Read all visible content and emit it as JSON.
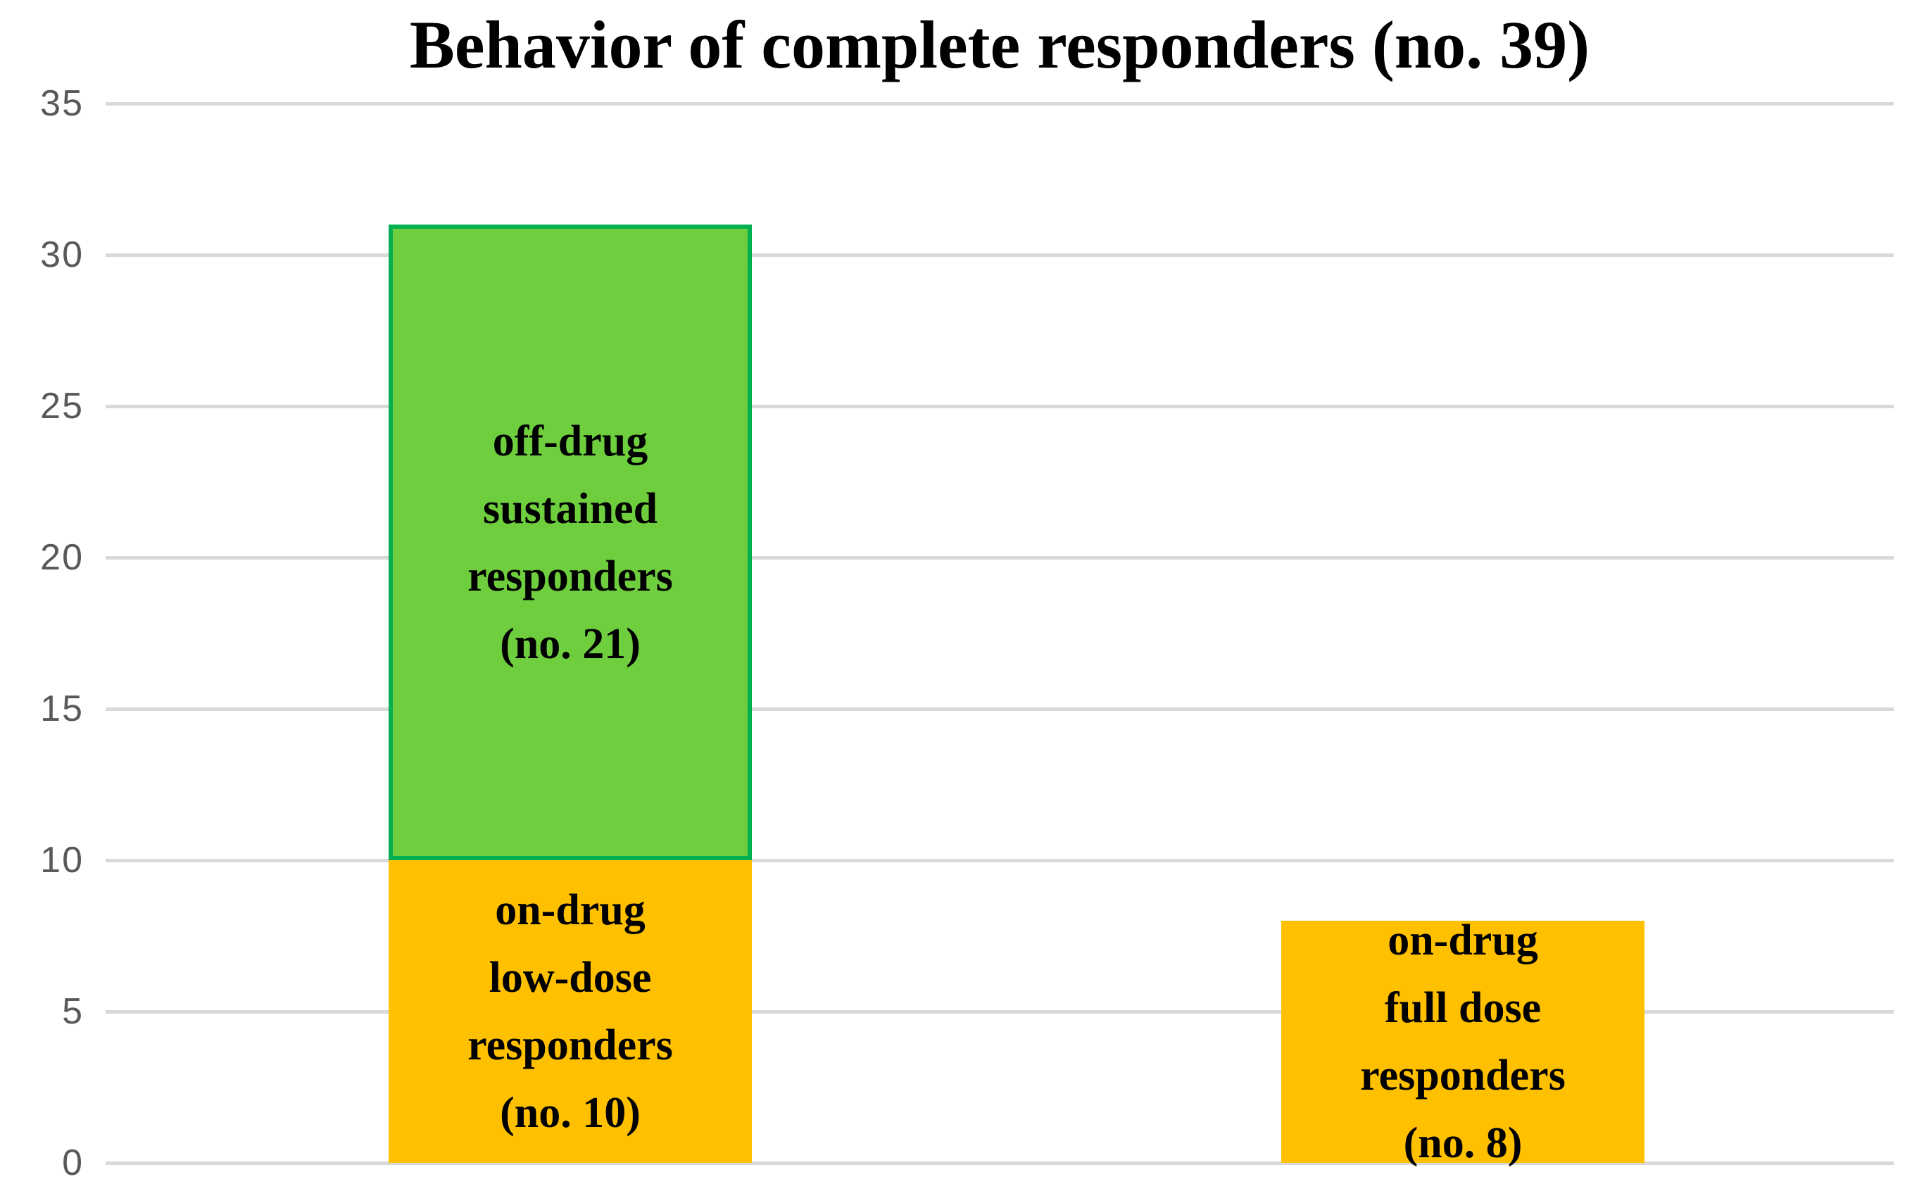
{
  "chart_data": {
    "type": "bar",
    "stacked": true,
    "title": "Behavior of complete responders (no. 39)",
    "total_responders": 39,
    "xlabel": "",
    "ylabel": "",
    "ylim": [
      0,
      35
    ],
    "yticks": [
      0,
      5,
      10,
      15,
      20,
      25,
      30,
      35
    ],
    "grid": true,
    "legend": "none",
    "colors": {
      "orange_fill": "#FFC000",
      "green_fill": "#6FCE3D",
      "green_border": "#00B050",
      "gridline": "#D9D9D9",
      "tick_label": "#595959",
      "title": "#000000",
      "bar_label": "#000000"
    },
    "bars": [
      {
        "segments": [
          {
            "value": 10,
            "label": "on-drug low-dose responders (no. 10)",
            "label_lines": [
              "on-drug",
              "low-dose",
              "responders",
              "(no. 10)"
            ],
            "fill": "#FFC000",
            "border": null
          },
          {
            "value": 21,
            "label": "off-drug sustained responders (no. 21)",
            "label_lines": [
              "off-drug",
              "sustained",
              "responders",
              "(no. 21)"
            ],
            "fill": "#6FCE3D",
            "border": "#00B050"
          }
        ]
      },
      {
        "segments": [
          {
            "value": 8,
            "label": "on-drug full dose responders (no. 8)",
            "label_lines": [
              "on-drug",
              "full dose",
              "responders",
              "(no. 8)"
            ],
            "fill": "#FFC000",
            "border": null
          }
        ]
      }
    ]
  }
}
